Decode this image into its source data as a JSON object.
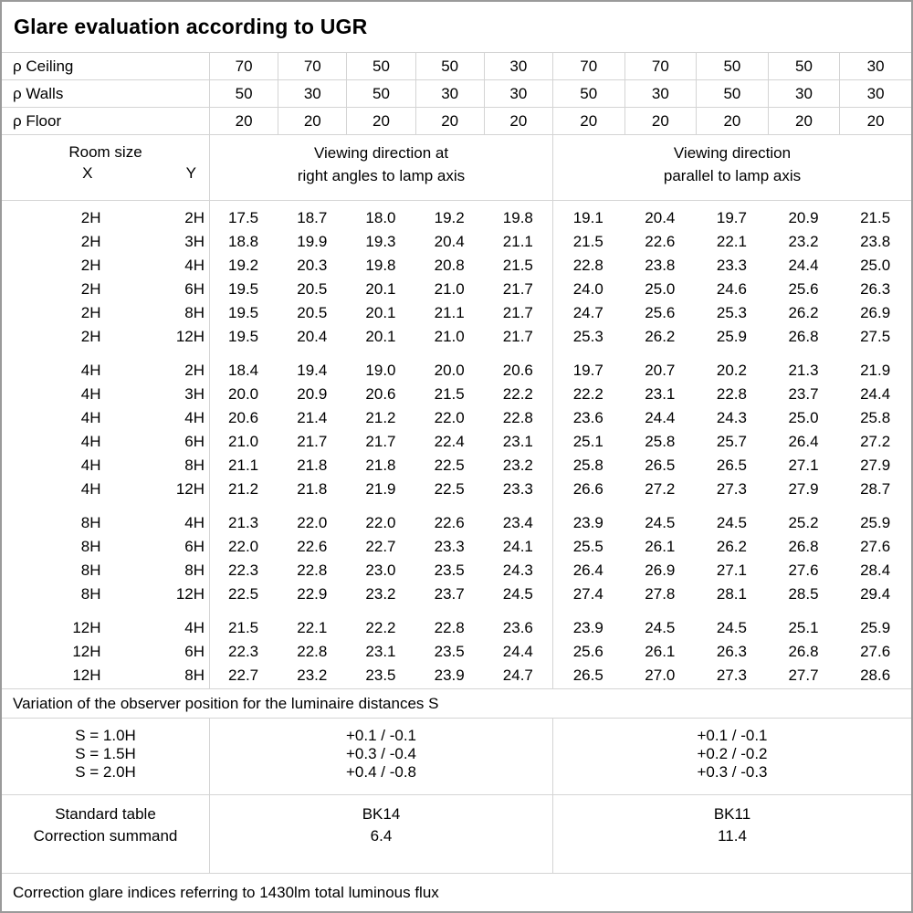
{
  "title": "Glare evaluation according to UGR",
  "colors": {
    "background": "#ffffff",
    "text": "#000000",
    "grid_line": "#d4d4d4",
    "outer_border": "#9a9a9a"
  },
  "header": {
    "rho_rows": [
      {
        "label": "ρ Ceiling",
        "values": [
          "70",
          "70",
          "50",
          "50",
          "30",
          "70",
          "70",
          "50",
          "50",
          "30"
        ]
      },
      {
        "label": "ρ Walls",
        "values": [
          "50",
          "30",
          "50",
          "30",
          "30",
          "50",
          "30",
          "50",
          "30",
          "30"
        ]
      },
      {
        "label": "ρ Floor",
        "values": [
          "20",
          "20",
          "20",
          "20",
          "20",
          "20",
          "20",
          "20",
          "20",
          "20"
        ]
      }
    ],
    "room_size_label": "Room size",
    "x_label": "X",
    "y_label": "Y",
    "group_right_angles": [
      "Viewing direction at",
      "right angles to lamp axis"
    ],
    "group_parallel": [
      "Viewing direction",
      "parallel to lamp axis"
    ]
  },
  "blocks": [
    {
      "x": "2H",
      "rows": [
        {
          "y": "2H",
          "ra": [
            "17.5",
            "18.7",
            "18.0",
            "19.2",
            "19.8"
          ],
          "pa": [
            "19.1",
            "20.4",
            "19.7",
            "20.9",
            "21.5"
          ]
        },
        {
          "y": "3H",
          "ra": [
            "18.8",
            "19.9",
            "19.3",
            "20.4",
            "21.1"
          ],
          "pa": [
            "21.5",
            "22.6",
            "22.1",
            "23.2",
            "23.8"
          ]
        },
        {
          "y": "4H",
          "ra": [
            "19.2",
            "20.3",
            "19.8",
            "20.8",
            "21.5"
          ],
          "pa": [
            "22.8",
            "23.8",
            "23.3",
            "24.4",
            "25.0"
          ]
        },
        {
          "y": "6H",
          "ra": [
            "19.5",
            "20.5",
            "20.1",
            "21.0",
            "21.7"
          ],
          "pa": [
            "24.0",
            "25.0",
            "24.6",
            "25.6",
            "26.3"
          ]
        },
        {
          "y": "8H",
          "ra": [
            "19.5",
            "20.5",
            "20.1",
            "21.1",
            "21.7"
          ],
          "pa": [
            "24.7",
            "25.6",
            "25.3",
            "26.2",
            "26.9"
          ]
        },
        {
          "y": "12H",
          "ra": [
            "19.5",
            "20.4",
            "20.1",
            "21.0",
            "21.7"
          ],
          "pa": [
            "25.3",
            "26.2",
            "25.9",
            "26.8",
            "27.5"
          ]
        }
      ]
    },
    {
      "x": "4H",
      "rows": [
        {
          "y": "2H",
          "ra": [
            "18.4",
            "19.4",
            "19.0",
            "20.0",
            "20.6"
          ],
          "pa": [
            "19.7",
            "20.7",
            "20.2",
            "21.3",
            "21.9"
          ]
        },
        {
          "y": "3H",
          "ra": [
            "20.0",
            "20.9",
            "20.6",
            "21.5",
            "22.2"
          ],
          "pa": [
            "22.2",
            "23.1",
            "22.8",
            "23.7",
            "24.4"
          ]
        },
        {
          "y": "4H",
          "ra": [
            "20.6",
            "21.4",
            "21.2",
            "22.0",
            "22.8"
          ],
          "pa": [
            "23.6",
            "24.4",
            "24.3",
            "25.0",
            "25.8"
          ]
        },
        {
          "y": "6H",
          "ra": [
            "21.0",
            "21.7",
            "21.7",
            "22.4",
            "23.1"
          ],
          "pa": [
            "25.1",
            "25.8",
            "25.7",
            "26.4",
            "27.2"
          ]
        },
        {
          "y": "8H",
          "ra": [
            "21.1",
            "21.8",
            "21.8",
            "22.5",
            "23.2"
          ],
          "pa": [
            "25.8",
            "26.5",
            "26.5",
            "27.1",
            "27.9"
          ]
        },
        {
          "y": "12H",
          "ra": [
            "21.2",
            "21.8",
            "21.9",
            "22.5",
            "23.3"
          ],
          "pa": [
            "26.6",
            "27.2",
            "27.3",
            "27.9",
            "28.7"
          ]
        }
      ]
    },
    {
      "x": "8H",
      "rows": [
        {
          "y": "4H",
          "ra": [
            "21.3",
            "22.0",
            "22.0",
            "22.6",
            "23.4"
          ],
          "pa": [
            "23.9",
            "24.5",
            "24.5",
            "25.2",
            "25.9"
          ]
        },
        {
          "y": "6H",
          "ra": [
            "22.0",
            "22.6",
            "22.7",
            "23.3",
            "24.1"
          ],
          "pa": [
            "25.5",
            "26.1",
            "26.2",
            "26.8",
            "27.6"
          ]
        },
        {
          "y": "8H",
          "ra": [
            "22.3",
            "22.8",
            "23.0",
            "23.5",
            "24.3"
          ],
          "pa": [
            "26.4",
            "26.9",
            "27.1",
            "27.6",
            "28.4"
          ]
        },
        {
          "y": "12H",
          "ra": [
            "22.5",
            "22.9",
            "23.2",
            "23.7",
            "24.5"
          ],
          "pa": [
            "27.4",
            "27.8",
            "28.1",
            "28.5",
            "29.4"
          ]
        }
      ]
    },
    {
      "x": "12H",
      "rows": [
        {
          "y": "4H",
          "ra": [
            "21.5",
            "22.1",
            "22.2",
            "22.8",
            "23.6"
          ],
          "pa": [
            "23.9",
            "24.5",
            "24.5",
            "25.1",
            "25.9"
          ]
        },
        {
          "y": "6H",
          "ra": [
            "22.3",
            "22.8",
            "23.1",
            "23.5",
            "24.4"
          ],
          "pa": [
            "25.6",
            "26.1",
            "26.3",
            "26.8",
            "27.6"
          ]
        },
        {
          "y": "8H",
          "ra": [
            "22.7",
            "23.2",
            "23.5",
            "23.9",
            "24.7"
          ],
          "pa": [
            "26.5",
            "27.0",
            "27.3",
            "27.7",
            "28.6"
          ]
        }
      ]
    }
  ],
  "variation": {
    "title": "Variation of the observer position for the luminaire distances S",
    "rows": [
      {
        "s": "S = 1.0H",
        "right_angles": "+0.1 / -0.1",
        "parallel": "+0.1 / -0.1"
      },
      {
        "s": "S = 1.5H",
        "right_angles": "+0.3 / -0.4",
        "parallel": "+0.2 / -0.2"
      },
      {
        "s": "S = 2.0H",
        "right_angles": "+0.4 / -0.8",
        "parallel": "+0.3 / -0.3"
      }
    ]
  },
  "standard": {
    "labels": [
      "Standard table",
      "Correction summand"
    ],
    "right_angles": [
      "BK14",
      "6.4"
    ],
    "parallel": [
      "BK11",
      "11.4"
    ]
  },
  "footer": "Correction glare indices referring to 1430lm total luminous flux"
}
